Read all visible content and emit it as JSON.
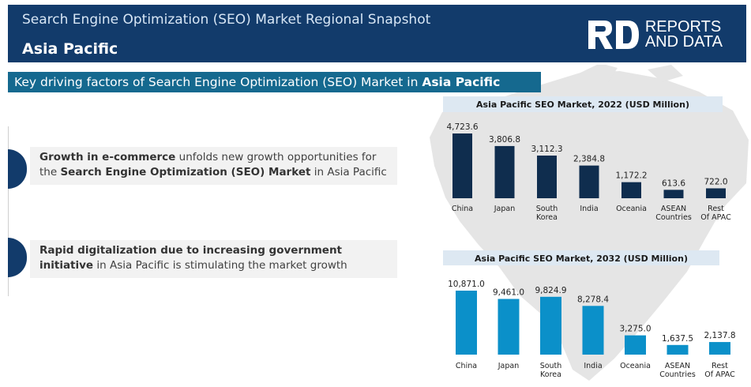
{
  "header": {
    "title": "Search Engine Optimization (SEO) Market Regional Snapshot",
    "region": "Asia Pacific"
  },
  "logo": {
    "line1": "REPORTS",
    "line2": "AND DATA"
  },
  "banner": {
    "text": "Key driving factors of Search Engine Optimization (SEO) Market in ",
    "highlight": "Asia Pacific"
  },
  "factors": [
    {
      "bold1": "Growth in e-commerce",
      "text1": "  unfolds new growth opportunities for the ",
      "bold2": "Search Engine Optimization (SEO) Market",
      "text2": " in Asia Pacific"
    },
    {
      "bold1": "Rapid digitalization due to increasing government initiative",
      "text1": " in Asia Pacific is stimulating the market growth"
    }
  ],
  "colors": {
    "header": "#123b6b",
    "banner": "#15698f",
    "bar_2022": "#0f2d4e",
    "bar_2032": "#0b90c9"
  },
  "chart_data": [
    {
      "type": "bar",
      "title": "Asia Pacific SEO Market, 2022 (USD Million)",
      "categories": [
        "China",
        "Japan",
        "South Korea",
        "India",
        "Oceania",
        "ASEAN Countries",
        "Rest Of APAC"
      ],
      "values": [
        4723.6,
        3806.8,
        3112.3,
        2384.8,
        1172.2,
        613.6,
        722.0
      ],
      "value_labels": [
        "4,723.6",
        "3,806.8",
        "3,112.3",
        "2,384.8",
        "1,172.2",
        "613.6",
        "722.0"
      ],
      "ylim": [
        0,
        4723.6
      ],
      "color": "#0f2d4e"
    },
    {
      "type": "bar",
      "title": "Asia Pacific SEO Market, 2032 (USD Million)",
      "categories": [
        "China",
        "Japan",
        "South Korea",
        "India",
        "Oceania",
        "ASEAN Countries",
        "Rest Of APAC"
      ],
      "values": [
        10871.0,
        9461.0,
        9824.9,
        8278.4,
        3275.0,
        1637.5,
        2137.8
      ],
      "value_labels": [
        "10,871.0",
        "9,461.0",
        "9,824.9",
        "8,278.4",
        "3,275.0",
        "1,637.5",
        "2,137.8"
      ],
      "ylim": [
        0,
        10871.0
      ],
      "color": "#0b90c9"
    }
  ]
}
